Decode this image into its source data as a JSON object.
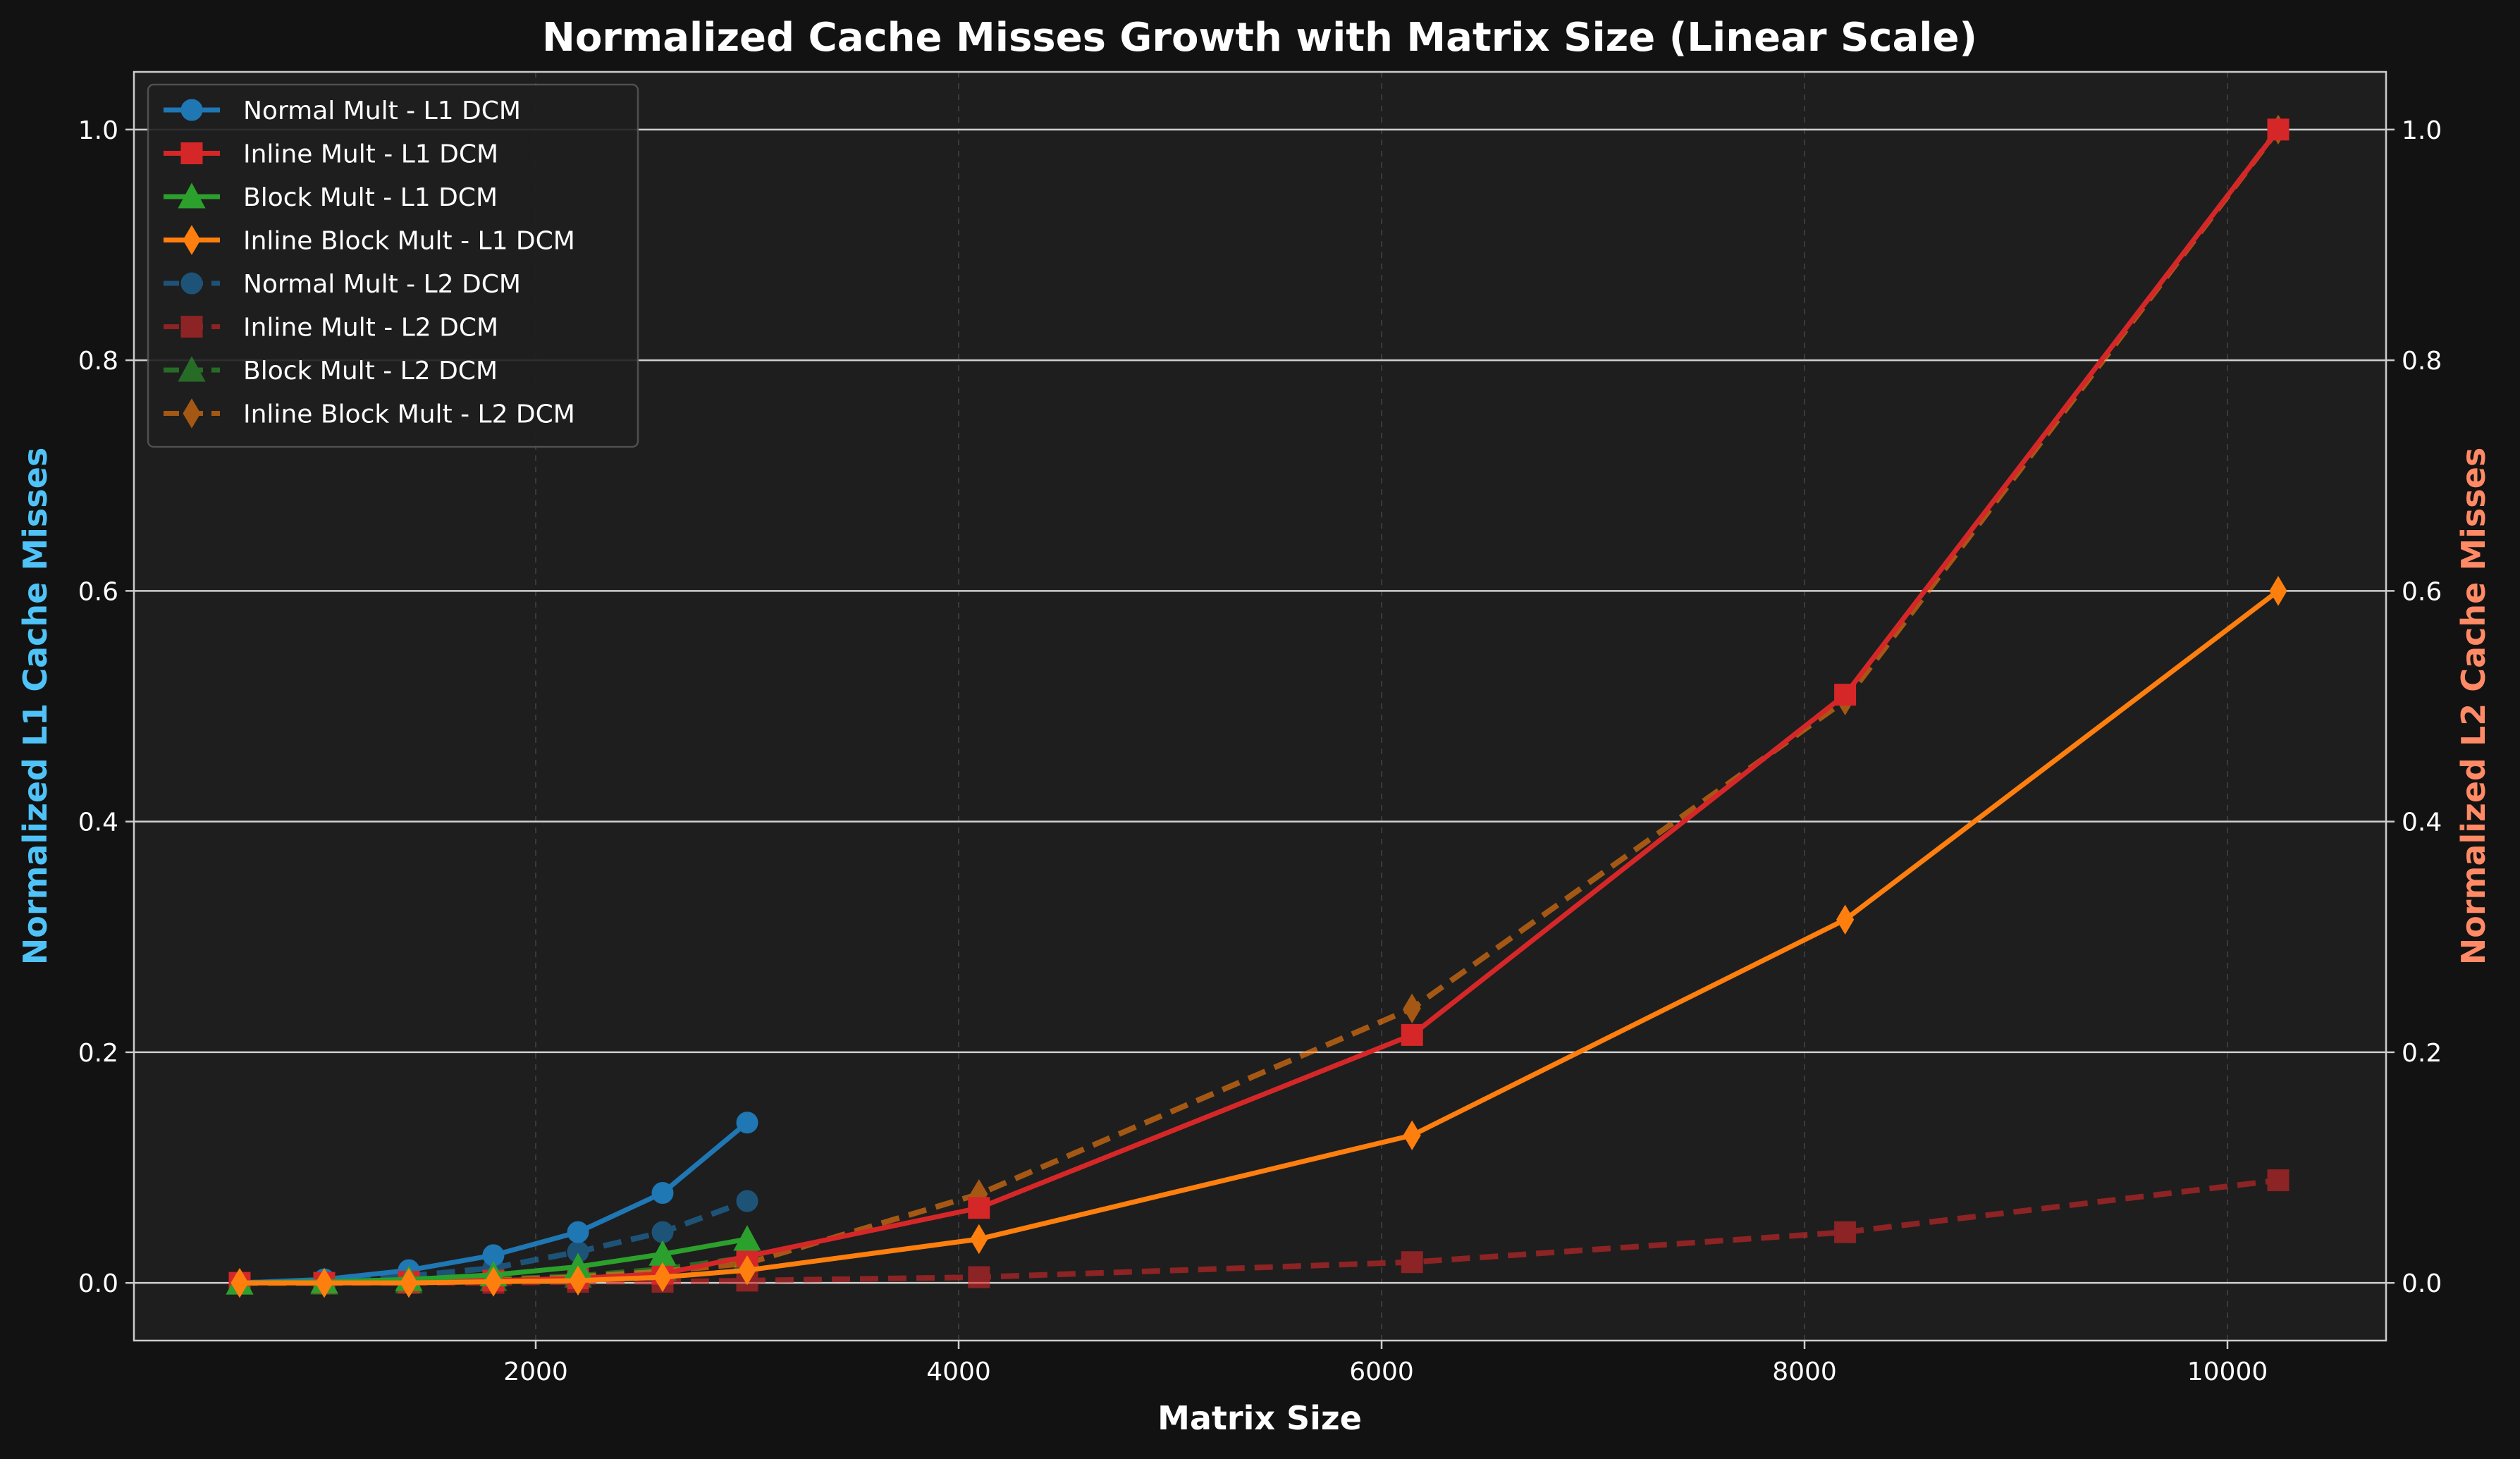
{
  "chart_data": {
    "type": "line",
    "title": "Normalized Cache Misses Growth with Matrix Size (Linear Scale)",
    "xlabel": "Matrix Size",
    "ylabel_left": "Normalized L1 Cache Misses",
    "ylabel_right": "Normalized L2 Cache Misses",
    "xlim": [
      100,
      10750
    ],
    "ylim": [
      -0.05,
      1.05
    ],
    "xticks": [
      2000,
      4000,
      6000,
      8000,
      10000
    ],
    "xtick_labels": [
      "2000",
      "4000",
      "6000",
      "8000",
      "10000"
    ],
    "yticks": [
      0.0,
      0.2,
      0.4,
      0.6,
      0.8,
      1.0
    ],
    "ytick_labels": [
      "0.0",
      "0.2",
      "0.4",
      "0.6",
      "0.8",
      "1.0"
    ],
    "grid": true,
    "legend_position": "top-left",
    "background": "#1e1e1e",
    "series": [
      {
        "name": "Normal Mult - L1 DCM",
        "axis": "left",
        "color": "#1f77b4",
        "marker": "circle",
        "dashed": false,
        "x": [
          600,
          1000,
          1400,
          1800,
          2200,
          2600,
          3000
        ],
        "y": [
          0.0,
          0.003,
          0.011,
          0.024,
          0.044,
          0.078,
          0.139
        ]
      },
      {
        "name": "Inline Mult - L1 DCM",
        "axis": "left",
        "color": "#d62728",
        "marker": "square",
        "dashed": false,
        "x": [
          600,
          1000,
          1400,
          1800,
          2200,
          2600,
          3000,
          4096,
          6144,
          8192,
          10240
        ],
        "y": [
          0.0,
          0.0,
          0.001,
          0.002,
          0.004,
          0.008,
          0.023,
          0.065,
          0.215,
          0.51,
          1.0
        ]
      },
      {
        "name": "Block Mult - L1 DCM",
        "axis": "left",
        "color": "#2ca02c",
        "marker": "triangle",
        "dashed": false,
        "x": [
          600,
          1000,
          1400,
          1800,
          2200,
          2600,
          3000
        ],
        "y": [
          0.0,
          0.001,
          0.003,
          0.007,
          0.014,
          0.025,
          0.038
        ]
      },
      {
        "name": "Inline Block Mult - L1 DCM",
        "axis": "left",
        "color": "#ff7f0e",
        "marker": "diamond",
        "dashed": false,
        "x": [
          600,
          1000,
          1400,
          1800,
          2200,
          2600,
          3000,
          4096,
          6144,
          8192,
          10240
        ],
        "y": [
          0.0,
          0.0,
          0.0,
          0.001,
          0.002,
          0.005,
          0.011,
          0.038,
          0.128,
          0.315,
          0.6
        ]
      },
      {
        "name": "Normal Mult - L2 DCM",
        "axis": "right",
        "color": "#1f77b4",
        "marker": "circle",
        "dashed": true,
        "alpha": 0.6,
        "x": [
          600,
          1000,
          1400,
          1800,
          2200,
          2600,
          3000
        ],
        "y": [
          0.0,
          0.002,
          0.006,
          0.013,
          0.027,
          0.044,
          0.071
        ]
      },
      {
        "name": "Inline Mult - L2 DCM",
        "axis": "right",
        "color": "#d62728",
        "marker": "square",
        "dashed": true,
        "alpha": 0.6,
        "x": [
          600,
          1000,
          1400,
          1800,
          2200,
          2600,
          3000,
          4096,
          6144,
          8192,
          10240
        ],
        "y": [
          0.0,
          0.0,
          0.0,
          0.0,
          0.001,
          0.001,
          0.002,
          0.005,
          0.018,
          0.044,
          0.089
        ]
      },
      {
        "name": "Block Mult - L2 DCM",
        "axis": "right",
        "color": "#2ca02c",
        "marker": "triangle",
        "dashed": true,
        "alpha": 0.6,
        "x": [
          600,
          1000,
          1400,
          1800,
          2200,
          2600,
          3000
        ],
        "y": [
          0.0,
          0.0,
          0.001,
          0.003,
          0.006,
          0.012,
          0.022
        ]
      },
      {
        "name": "Inline Block Mult - L2 DCM",
        "axis": "right",
        "color": "#ff7f0e",
        "marker": "diamond",
        "dashed": true,
        "alpha": 0.6,
        "x": [
          600,
          1000,
          1400,
          1800,
          2200,
          2600,
          3000,
          4096,
          6144,
          8192,
          10240
        ],
        "y": [
          0.0,
          0.0,
          0.001,
          0.002,
          0.005,
          0.01,
          0.017,
          0.077,
          0.238,
          0.505,
          1.0
        ]
      }
    ]
  }
}
